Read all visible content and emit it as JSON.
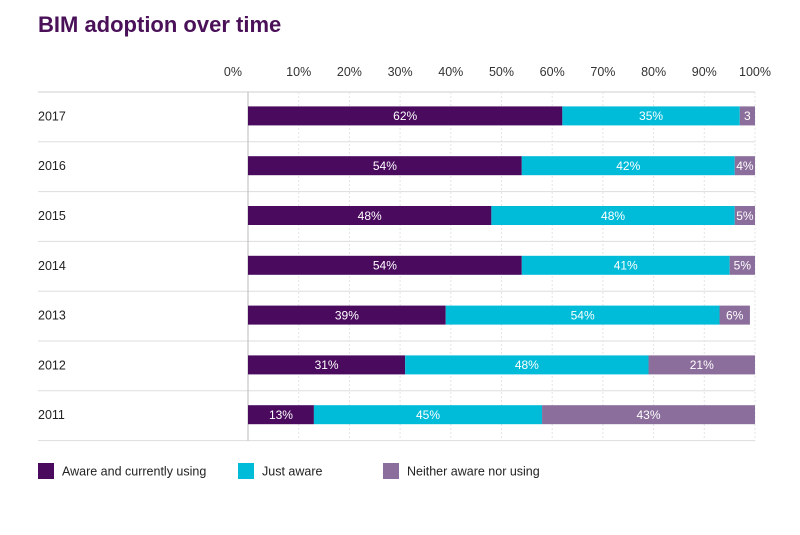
{
  "chart_data": {
    "type": "bar",
    "orientation": "horizontal",
    "stacked": true,
    "title": "BIM adoption over time",
    "xlim": [
      0,
      100
    ],
    "x_ticks": [
      "0%",
      "10%",
      "20%",
      "30%",
      "40%",
      "50%",
      "60%",
      "70%",
      "80%",
      "90%",
      "100%"
    ],
    "categories": [
      "2017",
      "2016",
      "2015",
      "2014",
      "2013",
      "2012",
      "2011"
    ],
    "series": [
      {
        "name": "Aware and currently using",
        "color": "#4a0a5e",
        "values": [
          62,
          54,
          48,
          54,
          39,
          31,
          13
        ],
        "labels": [
          "62%",
          "54%",
          "48%",
          "54%",
          "39%",
          "31%",
          "13%"
        ]
      },
      {
        "name": "Just aware",
        "color": "#00bcd9",
        "values": [
          35,
          42,
          48,
          41,
          54,
          48,
          45
        ],
        "labels": [
          "35%",
          "42%",
          "48%",
          "41%",
          "54%",
          "48%",
          "45%"
        ]
      },
      {
        "name": "Neither aware nor using",
        "color": "#8b6e9b",
        "values": [
          3,
          4,
          5,
          5,
          6,
          21,
          43
        ],
        "labels": [
          "3",
          "4%",
          "5%",
          "5%",
          "6%",
          "21%",
          "43%"
        ]
      }
    ],
    "grid": true,
    "legend_position": "bottom-left"
  }
}
